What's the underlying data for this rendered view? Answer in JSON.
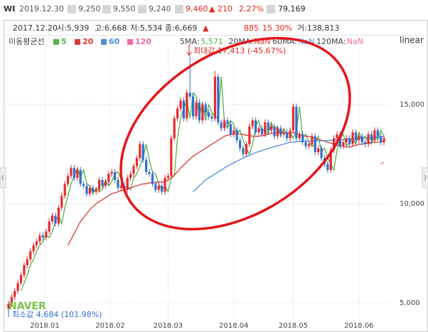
{
  "header": {
    "code": "WI",
    "date": "2019.12.30",
    "open": "9,250",
    "high": "9,550",
    "low": "9,240",
    "close": "9,460",
    "change": "▲ 210",
    "change_pct": "2.27%",
    "volume": "79,169"
  },
  "info": {
    "date": "2017.12.20",
    "open": "시:5,939",
    "high": "고:6,668",
    "low": "저:5,534",
    "close": "종:6,669",
    "change_sign": "▲",
    "change_abs": "885",
    "change_pct": "15.30%",
    "volume": "거:138,813"
  },
  "chart_data": {
    "type": "candlestick",
    "legend_title": "이동평균선",
    "scale_label": "linear",
    "watermark": "NAVER",
    "annotations": [
      "최대값 17,413 (-45.67%)",
      "최소값 4,684 (101.98%)"
    ],
    "ma_status": [
      {
        "label": "5MA:",
        "value": "5,571"
      },
      {
        "label": "20MA:",
        "value": "NaN"
      },
      {
        "label": "60MA:",
        "value": "NaN"
      },
      {
        "label": "120MA:",
        "value": "NaN"
      }
    ],
    "up_color": "#e8292c",
    "down_color": "#2d6fd0",
    "xlim": [
      -0.9,
      121.8
    ],
    "xticks": [
      {
        "value": 11.6,
        "label": "2018.01"
      },
      {
        "value": 32.5,
        "label": "2018.02"
      },
      {
        "value": 51,
        "label": "2018.03"
      },
      {
        "value": 72,
        "label": "2018.04"
      },
      {
        "value": 91,
        "label": "2018.05"
      },
      {
        "value": 112,
        "label": "2018.06"
      }
    ],
    "ylim": [
      3850,
      18480
    ],
    "yticks": [
      {
        "value": 5000,
        "label": "5,000"
      },
      {
        "value": 10000,
        "label": "10,000"
      },
      {
        "value": 15000,
        "label": "15,000"
      }
    ],
    "grid": true,
    "open": [
      4700,
      4950,
      5300,
      5600,
      6000,
      6400,
      6900,
      7200,
      7600,
      7900,
      8100,
      8400,
      8300,
      8600,
      9100,
      9400,
      9000,
      9800,
      10400,
      11000,
      11400,
      11800,
      11300,
      11700,
      11000,
      10900,
      10500,
      10800,
      10600,
      10700,
      11200,
      10900,
      11100,
      11500,
      11600,
      11200,
      10800,
      10900,
      10700,
      11300,
      11500,
      11900,
      12300,
      13000,
      12200,
      11600,
      11500,
      11000,
      10700,
      10900,
      10600,
      11300,
      11400,
      13300,
      14300,
      14800,
      15200,
      14300,
      15600,
      15400,
      14400,
      15100,
      14200,
      15000,
      14600,
      14400,
      14300,
      16400,
      14100,
      13800,
      14200,
      14000,
      13500,
      13700,
      13200,
      12800,
      12500,
      13000,
      13900,
      14200,
      13600,
      13800,
      13500,
      14100,
      13700,
      13900,
      13400,
      13800,
      13500,
      13600,
      13300,
      13700,
      14900,
      13300,
      13500,
      13100,
      12900,
      13000,
      13400,
      12600,
      12800,
      12300,
      12000,
      11700,
      12700,
      13300,
      13500,
      12900,
      13100,
      13300,
      13000,
      13600,
      13200,
      13400,
      13100,
      13000,
      13500,
      13200,
      13700,
      13400,
      13100
    ],
    "high": [
      5100,
      5450,
      5750,
      6150,
      6550,
      7050,
      7350,
      7750,
      8050,
      8250,
      8550,
      8550,
      8750,
      9250,
      9550,
      9550,
      9950,
      10550,
      11150,
      11550,
      11950,
      11950,
      11850,
      11850,
      11150,
      11050,
      10950,
      10950,
      10850,
      11350,
      11350,
      11250,
      11650,
      11750,
      11750,
      11350,
      11050,
      11050,
      11450,
      11650,
      12050,
      12450,
      13150,
      13150,
      12350,
      11750,
      11650,
      11150,
      11050,
      11050,
      11450,
      11550,
      13450,
      14450,
      14950,
      15350,
      15350,
      15750,
      17413,
      15550,
      15250,
      15250,
      15150,
      15150,
      14750,
      14550,
      16700,
      16550,
      14250,
      14350,
      14350,
      14150,
      13850,
      13850,
      13350,
      12950,
      13150,
      14050,
      14350,
      14350,
      13950,
      13950,
      14250,
      14250,
      14050,
      14050,
      13950,
      13950,
      13750,
      13750,
      13850,
      15050,
      15050,
      13650,
      13650,
      13250,
      13150,
      13550,
      13550,
      12950,
      12950,
      12450,
      12150,
      12850,
      13450,
      13650,
      13650,
      13250,
      13450,
      13450,
      13750,
      13750,
      13550,
      13550,
      13250,
      13650,
      13650,
      13850,
      13850,
      13550,
      13450
    ],
    "low": [
      4684,
      4800,
      5150,
      5450,
      5850,
      6250,
      6750,
      7050,
      7450,
      7750,
      7950,
      8150,
      8150,
      8450,
      8950,
      8850,
      8850,
      9650,
      10250,
      10850,
      11250,
      11150,
      11150,
      10850,
      10750,
      10350,
      10350,
      10450,
      10450,
      10550,
      10750,
      10750,
      10950,
      11350,
      11050,
      10650,
      10650,
      10550,
      10550,
      11150,
      11350,
      11750,
      12150,
      12050,
      11450,
      11350,
      10850,
      10550,
      10550,
      10450,
      10450,
      11150,
      11250,
      13150,
      14150,
      14650,
      14150,
      14150,
      15250,
      14250,
      14250,
      14050,
      14050,
      14450,
      14250,
      14150,
      14150,
      13950,
      13650,
      13650,
      13850,
      13350,
      13350,
      13050,
      12650,
      12350,
      12350,
      12850,
      13750,
      13450,
      13450,
      13350,
      13350,
      13550,
      13550,
      13250,
      13250,
      13350,
      13350,
      13150,
      13150,
      13550,
      13150,
      13150,
      12950,
      12750,
      12750,
      12850,
      12450,
      12450,
      12150,
      11850,
      11550,
      11550,
      12550,
      13150,
      12750,
      12750,
      12950,
      12850,
      12850,
      13050,
      13050,
      12950,
      12850,
      12850,
      13050,
      13050,
      13250,
      12950,
      12950
    ],
    "close": [
      4950,
      5300,
      5600,
      6000,
      6400,
      6900,
      7200,
      7600,
      7900,
      8100,
      8400,
      8300,
      8600,
      9100,
      9400,
      9000,
      9800,
      10400,
      11000,
      11400,
      11800,
      11300,
      11700,
      11000,
      10900,
      10500,
      10800,
      10600,
      10700,
      11200,
      10900,
      11100,
      11500,
      11600,
      11200,
      10800,
      10900,
      10700,
      11300,
      11500,
      11900,
      12300,
      13000,
      12200,
      11600,
      11500,
      11000,
      10700,
      10900,
      10600,
      11300,
      11400,
      13300,
      14300,
      14800,
      15200,
      14300,
      15600,
      15400,
      14400,
      15100,
      14200,
      15000,
      14600,
      14400,
      14300,
      16400,
      14100,
      13800,
      14200,
      14000,
      13500,
      13700,
      13200,
      12800,
      12500,
      13000,
      13900,
      14200,
      13600,
      13800,
      13500,
      14100,
      13700,
      13900,
      13400,
      13800,
      13500,
      13600,
      13300,
      13700,
      14900,
      13300,
      13500,
      13100,
      12900,
      13000,
      13400,
      12600,
      12800,
      12300,
      12000,
      11700,
      12700,
      13300,
      13500,
      12900,
      13100,
      13300,
      13000,
      13600,
      13200,
      13400,
      13100,
      13000,
      13500,
      13200,
      13700,
      13400,
      13100,
      13300
    ],
    "series": [
      {
        "name": "5",
        "color": "#57b04a",
        "values": [
          null,
          null,
          null,
          null,
          5600,
          6000,
          6400,
          6900,
          7200,
          7600,
          7900,
          8100,
          8400,
          8300,
          8600,
          9100,
          9400,
          9000,
          9800,
          10400,
          11000,
          11400,
          11800,
          11300,
          11700,
          11000,
          10900,
          10500,
          10800,
          10600,
          10700,
          11200,
          10900,
          11100,
          11500,
          11600,
          11200,
          10800,
          10900,
          10700,
          11300,
          11500,
          11900,
          12300,
          13000,
          12200,
          11600,
          11500,
          11000,
          10700,
          10900,
          10600,
          11300,
          11400,
          13300,
          14300,
          14800,
          15200,
          14300,
          15600,
          15400,
          14400,
          15100,
          14200,
          15000,
          14600,
          14400,
          14300,
          16400,
          14100,
          13800,
          14200,
          14000,
          13500,
          13700,
          13200,
          12800,
          12500,
          13000,
          13900,
          14200,
          13600,
          13800,
          13500,
          14100,
          13700,
          13900,
          13400,
          13800,
          13500,
          13600,
          13300,
          13700,
          14900,
          13300,
          13500,
          13100,
          12900,
          13000,
          13400,
          12600,
          12800,
          12300,
          12000,
          11700,
          12700,
          13300,
          13500,
          12900,
          13100,
          13300,
          13000,
          13600,
          13200,
          13400,
          13100,
          13000,
          13500,
          13200,
          13700,
          13400
        ]
      },
      {
        "name": "20",
        "color": "#d93a35",
        "values": [
          null,
          null,
          null,
          null,
          null,
          null,
          null,
          null,
          null,
          null,
          null,
          null,
          null,
          null,
          null,
          null,
          null,
          null,
          null,
          7900,
          8200,
          8500,
          8800,
          9100,
          9300,
          9500,
          9700,
          9850,
          10000,
          10100,
          10200,
          10300,
          10400,
          10500,
          10550,
          10600,
          10650,
          10700,
          10750,
          10800,
          10850,
          10900,
          10950,
          11000,
          11000,
          11050,
          11050,
          11050,
          11100,
          11100,
          11100,
          11200,
          11300,
          11450,
          11600,
          11800,
          11950,
          12100,
          12250,
          12400,
          12500,
          12600,
          12700,
          12800,
          12900,
          13000,
          13100,
          13200,
          13300,
          13400,
          13450,
          13500,
          13500,
          13550,
          13500,
          13500,
          13450,
          13450,
          13400,
          13400,
          13400,
          13450,
          13450,
          13500,
          13550,
          13550,
          13600,
          13600,
          13600,
          13550,
          13550,
          13600,
          13550,
          13500,
          13450,
          13400,
          13400,
          13350,
          13300,
          13250,
          13200,
          13150,
          13100,
          13050,
          13000,
          12950,
          12900,
          12900,
          12850,
          12850,
          12900,
          12950,
          13000,
          13000,
          13050,
          13050,
          13100,
          13100,
          13100,
          13100,
          13150
        ]
      },
      {
        "name": "60",
        "color": "#4d8fdc",
        "values": [
          null,
          null,
          null,
          null,
          null,
          null,
          null,
          null,
          null,
          null,
          null,
          null,
          null,
          null,
          null,
          null,
          null,
          null,
          null,
          null,
          null,
          null,
          null,
          null,
          null,
          null,
          null,
          null,
          null,
          null,
          null,
          null,
          null,
          null,
          null,
          null,
          null,
          null,
          null,
          null,
          null,
          null,
          null,
          null,
          null,
          null,
          null,
          null,
          null,
          null,
          null,
          null,
          null,
          null,
          null,
          null,
          null,
          null,
          null,
          10600,
          10750,
          10900,
          11050,
          11200,
          11300,
          11400,
          11500,
          11600,
          11700,
          11800,
          11900,
          11980,
          12060,
          12140,
          12220,
          12300,
          12370,
          12440,
          12510,
          12570,
          12630,
          12680,
          12730,
          12780,
          12830,
          12880,
          12920,
          12960,
          13000,
          13050,
          13100,
          13110,
          13120,
          13130,
          13140,
          13150,
          13150,
          13160,
          13160,
          13170,
          13170,
          13180,
          13190,
          13200,
          13210,
          13220,
          13230,
          13240,
          13250,
          13270,
          13280,
          13290,
          13300,
          13310,
          13320,
          13330,
          13340,
          13350,
          13360,
          13370,
          13380
        ]
      },
      {
        "name": "120",
        "color": "#f06aa8",
        "values": [
          null,
          null,
          null,
          null,
          null,
          null,
          null,
          null,
          null,
          null,
          null,
          null,
          null,
          null,
          null,
          null,
          null,
          null,
          null,
          null,
          null,
          null,
          null,
          null,
          null,
          null,
          null,
          null,
          null,
          null,
          null,
          null,
          null,
          null,
          null,
          null,
          null,
          null,
          null,
          null,
          null,
          null,
          null,
          null,
          null,
          null,
          null,
          null,
          null,
          null,
          null,
          null,
          null,
          null,
          null,
          null,
          null,
          null,
          null,
          null,
          null,
          null,
          null,
          null,
          null,
          null,
          null,
          null,
          null,
          null,
          null,
          null,
          null,
          null,
          null,
          null,
          null,
          null,
          null,
          null,
          null,
          null,
          null,
          null,
          null,
          null,
          null,
          null,
          null,
          null,
          null,
          null,
          null,
          null,
          null,
          null,
          null,
          null,
          null,
          null,
          null,
          null,
          null,
          null,
          null,
          null,
          null,
          null,
          null,
          null,
          null,
          null,
          null,
          null,
          null,
          null,
          null,
          null,
          null,
          12000,
          12100
        ]
      }
    ]
  }
}
